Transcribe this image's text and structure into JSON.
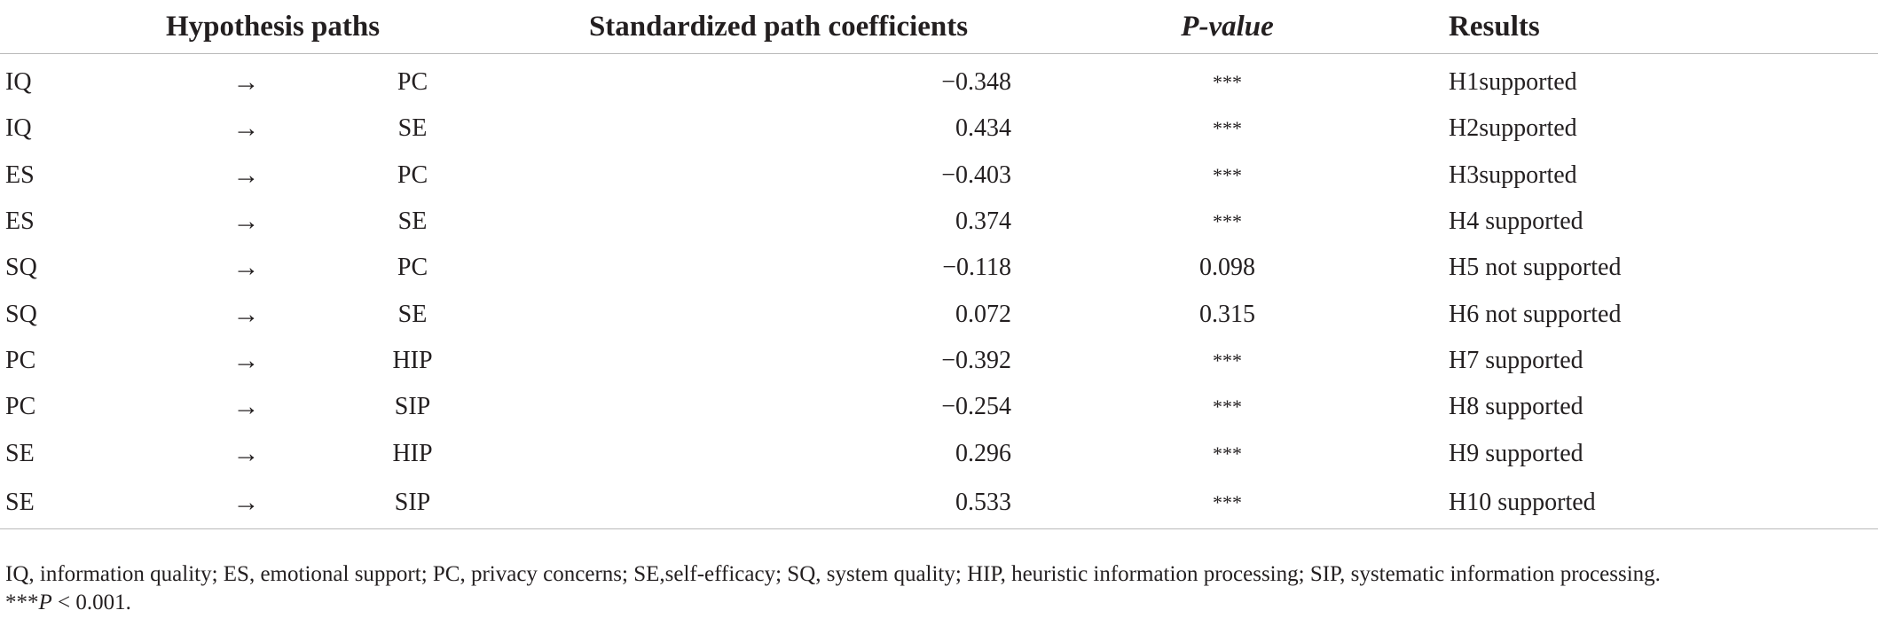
{
  "table": {
    "headers": {
      "paths": "Hypothesis paths",
      "coef": "Standardized path coefficients",
      "pvalue": "P-value",
      "results": "Results"
    },
    "arrow_symbol": "→",
    "rows": [
      {
        "from": "IQ",
        "to": "PC",
        "coef": "−0.348",
        "p": "***",
        "result": "H1supported"
      },
      {
        "from": "IQ",
        "to": "SE",
        "coef": "0.434",
        "p": "***",
        "result": "H2supported"
      },
      {
        "from": "ES",
        "to": "PC",
        "coef": "−0.403",
        "p": "***",
        "result": "H3supported"
      },
      {
        "from": "ES",
        "to": "SE",
        "coef": "0.374",
        "p": "***",
        "result": "H4 supported"
      },
      {
        "from": "SQ",
        "to": "PC",
        "coef": "−0.118",
        "p": "0.098",
        "result": "H5 not supported"
      },
      {
        "from": "SQ",
        "to": "SE",
        "coef": "0.072",
        "p": "0.315",
        "result": "H6 not supported"
      },
      {
        "from": "PC",
        "to": "HIP",
        "coef": "−0.392",
        "p": "***",
        "result": "H7 supported"
      },
      {
        "from": "PC",
        "to": "SIP",
        "coef": "−0.254",
        "p": "***",
        "result": "H8 supported"
      },
      {
        "from": "SE",
        "to": "HIP",
        "coef": "0.296",
        "p": "***",
        "result": "H9 supported"
      },
      {
        "from": "SE",
        "to": "SIP",
        "coef": "0.533",
        "p": "***",
        "result": "H10 supported"
      }
    ]
  },
  "footnote": {
    "abbreviations": "IQ, information quality; ES, emotional support; PC, privacy concerns; SE,self-efficacy; SQ, system quality; HIP, heuristic information processing; SIP, systematic information processing.",
    "sig_stars": "***",
    "sig_p": "P",
    "sig_rest": " < 0.001."
  }
}
